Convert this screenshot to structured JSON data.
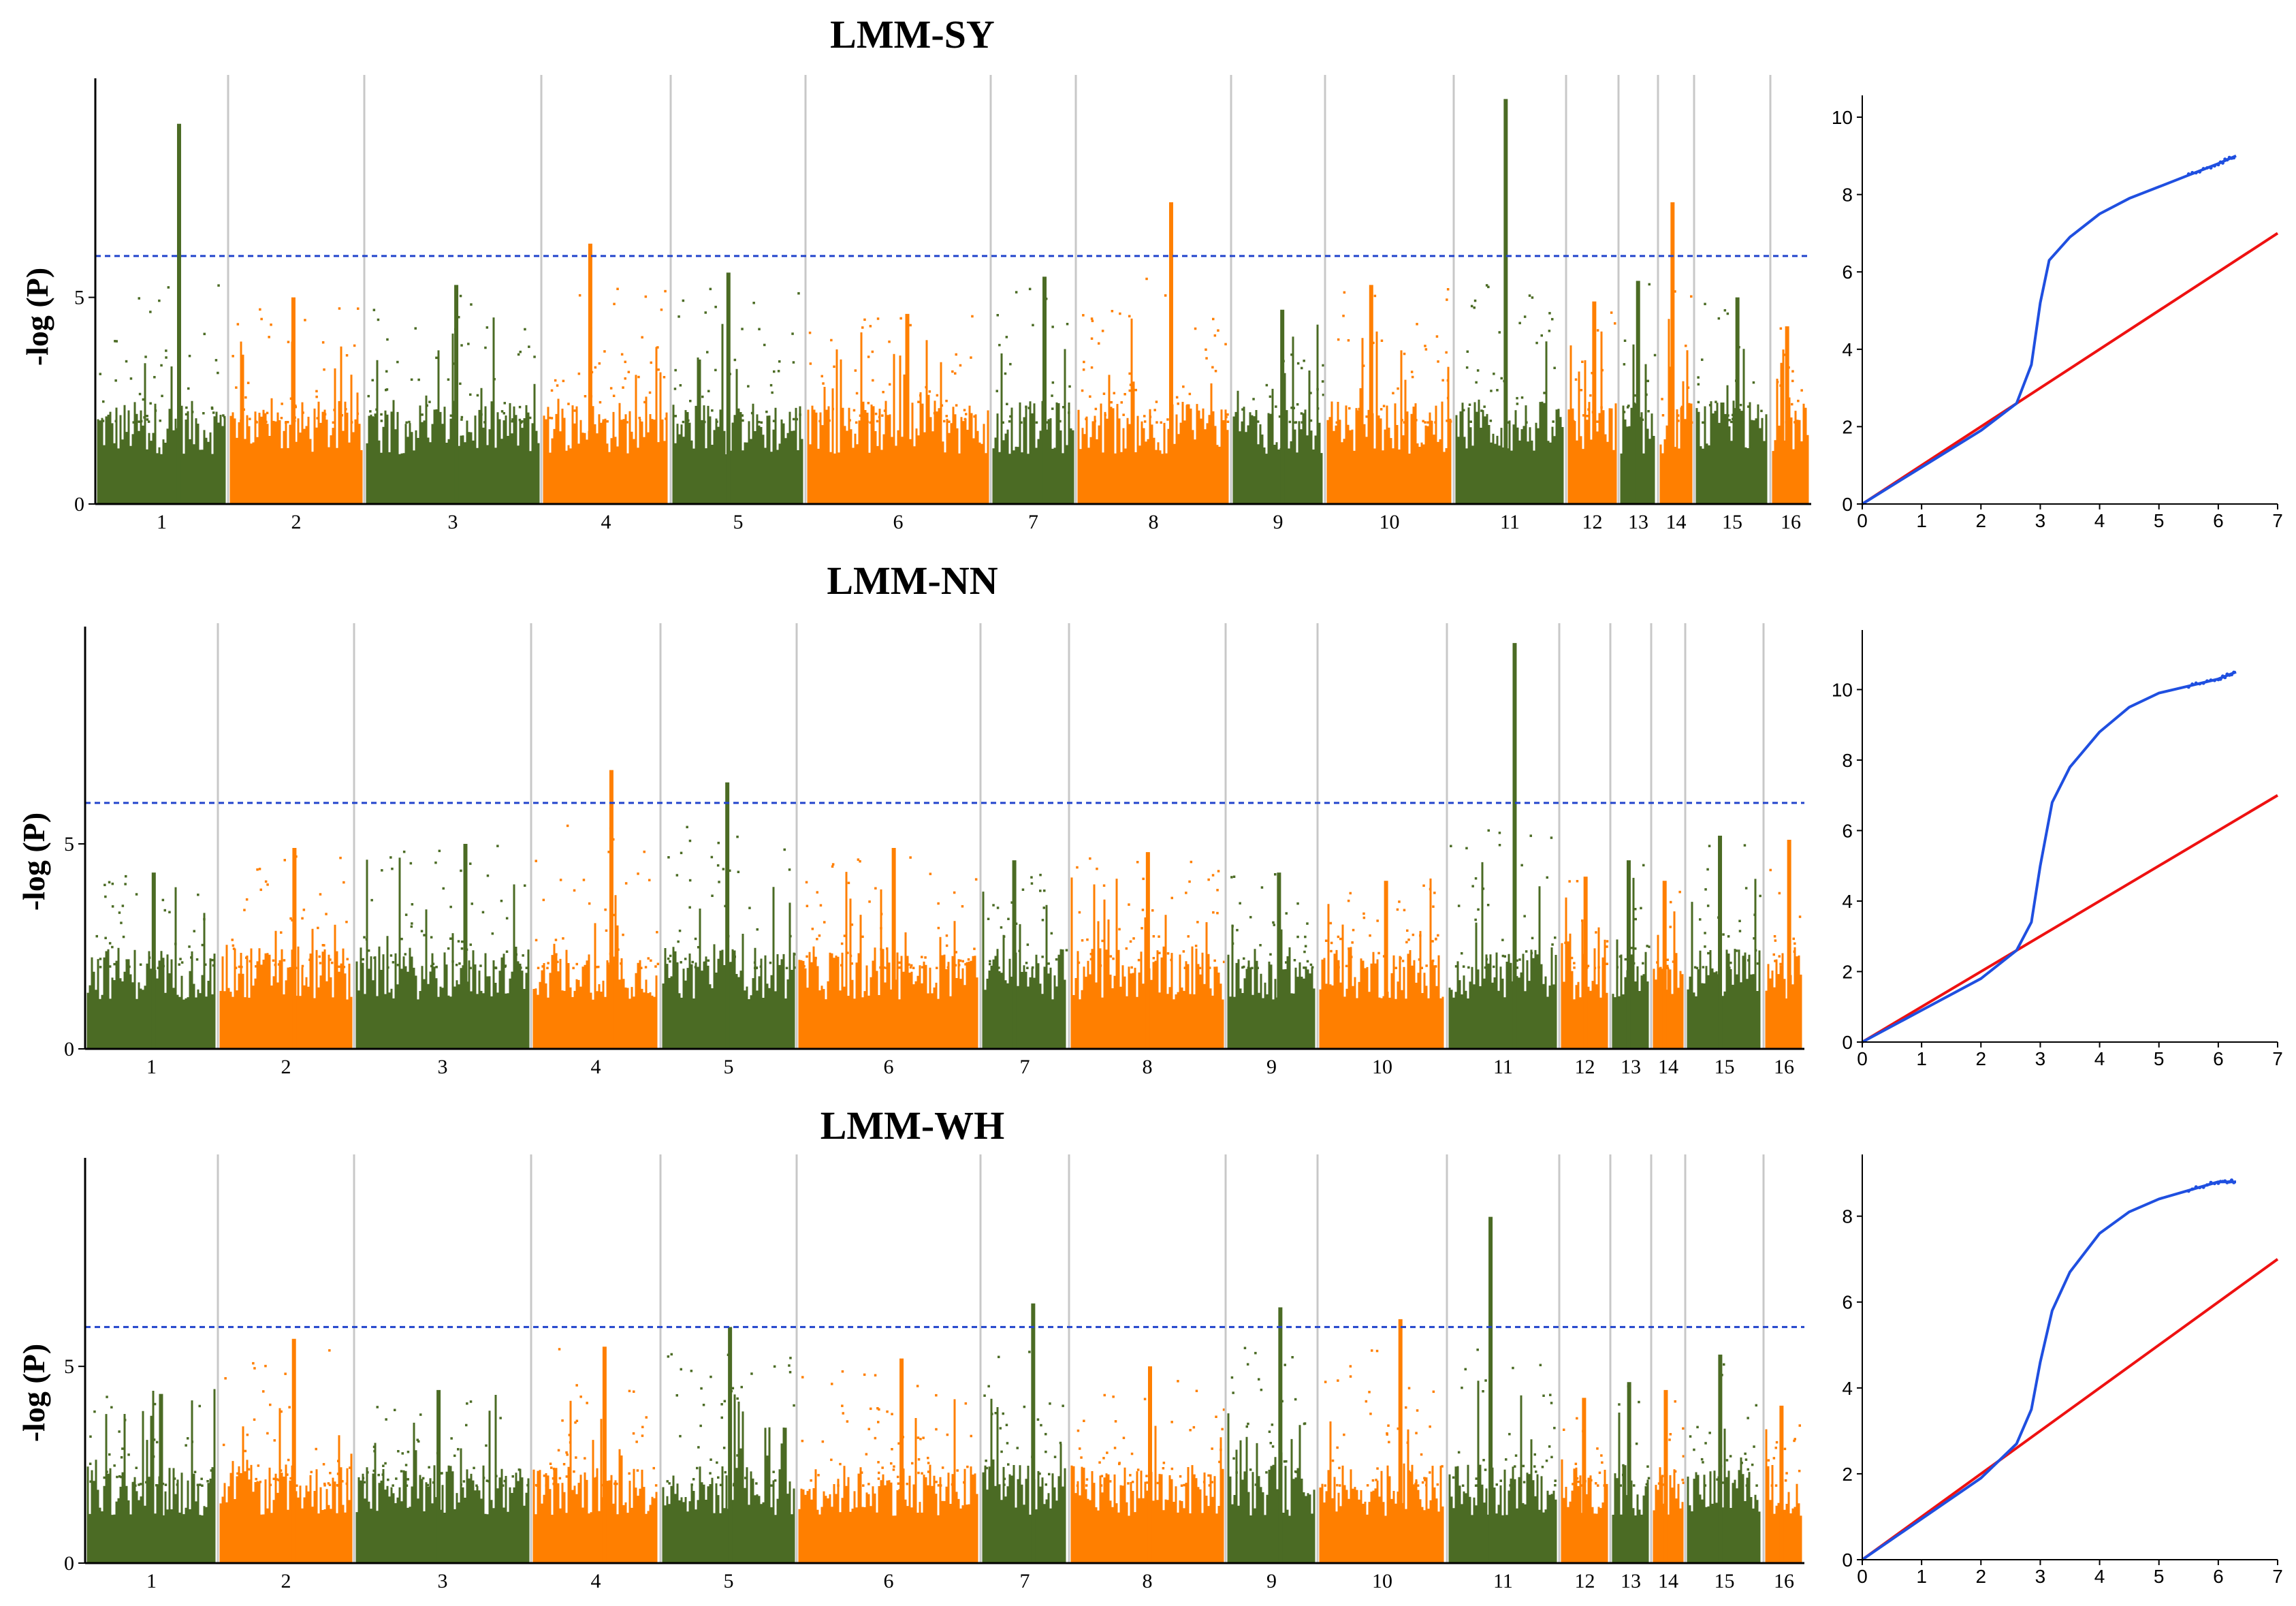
{
  "colors": {
    "chrom_odd": "#4b6b24",
    "chrom_even": "#ff7f00",
    "threshold": "#2244cc",
    "qq_observed": "#1f4fe0",
    "qq_expected": "#ee1111",
    "chrom_divider": "#c8c8c8"
  },
  "chart_data": [
    {
      "type": "scatter",
      "subtype": "manhattan",
      "title": "LMM-SY",
      "ylabel": "-log (P)",
      "xlabel": "",
      "yticks": [
        "0",
        "5"
      ],
      "ylim": [
        0,
        10.3
      ],
      "threshold": 6.0,
      "chromosomes": [
        "1",
        "2",
        "3",
        "4",
        "5",
        "6",
        "7",
        "8",
        "9",
        "10",
        "11",
        "12",
        "13",
        "14",
        "15",
        "16"
      ],
      "chromosome_peaks": [
        9.2,
        5.0,
        5.3,
        6.3,
        5.6,
        4.6,
        5.5,
        7.3,
        4.7,
        5.3,
        9.8,
        4.9,
        5.4,
        7.3,
        5.0,
        4.3
      ],
      "notable_peaks": [
        {
          "chromosome": "1",
          "value": 9.2
        },
        {
          "chromosome": "4",
          "value": 6.3
        },
        {
          "chromosome": "8",
          "value": 7.3
        },
        {
          "chromosome": "11",
          "value": 9.8
        },
        {
          "chromosome": "14",
          "value": 7.3
        }
      ]
    },
    {
      "type": "line",
      "subtype": "qq",
      "xticks": [
        "0",
        "1",
        "2",
        "3",
        "4",
        "5",
        "6",
        "7"
      ],
      "yticks": [
        "0",
        "2",
        "4",
        "6",
        "8",
        "10"
      ],
      "xlim": [
        0,
        7
      ],
      "ylim": [
        0,
        10.3
      ],
      "expected_line": [
        [
          0,
          0
        ],
        [
          7,
          7
        ]
      ],
      "observed": [
        [
          0,
          0
        ],
        [
          1,
          0.95
        ],
        [
          2,
          1.9
        ],
        [
          2.6,
          2.6
        ],
        [
          2.85,
          3.6
        ],
        [
          3.0,
          5.2
        ],
        [
          3.15,
          6.3
        ],
        [
          3.5,
          6.9
        ],
        [
          4,
          7.5
        ],
        [
          4.5,
          7.9
        ],
        [
          5,
          8.2
        ],
        [
          5.5,
          8.5
        ],
        [
          6,
          8.8
        ],
        [
          6.3,
          9.0
        ]
      ]
    },
    {
      "type": "scatter",
      "subtype": "manhattan",
      "title": "LMM-NN",
      "ylabel": "-log (P)",
      "xlabel": "",
      "yticks": [
        "0",
        "5"
      ],
      "ylim": [
        0,
        10.3
      ],
      "threshold": 6.0,
      "chromosomes": [
        "1",
        "2",
        "3",
        "4",
        "5",
        "6",
        "7",
        "8",
        "9",
        "10",
        "11",
        "12",
        "13",
        "14",
        "15",
        "16"
      ],
      "chromosome_peaks": [
        4.3,
        4.9,
        5.0,
        6.8,
        6.5,
        4.9,
        4.6,
        4.8,
        4.3,
        4.1,
        9.9,
        4.2,
        4.6,
        4.1,
        5.2,
        5.1
      ],
      "notable_peaks": [
        {
          "chromosome": "4",
          "value": 6.8
        },
        {
          "chromosome": "5",
          "value": 6.5
        },
        {
          "chromosome": "11",
          "value": 9.9
        }
      ]
    },
    {
      "type": "line",
      "subtype": "qq",
      "xticks": [
        "0",
        "1",
        "2",
        "3",
        "4",
        "5",
        "6",
        "7"
      ],
      "yticks": [
        "0",
        "2",
        "4",
        "6",
        "8",
        "10"
      ],
      "xlim": [
        0,
        7
      ],
      "ylim": [
        0,
        11.4
      ],
      "expected_line": [
        [
          0,
          0
        ],
        [
          7,
          7
        ]
      ],
      "observed": [
        [
          0,
          0
        ],
        [
          1,
          0.9
        ],
        [
          2,
          1.8
        ],
        [
          2.6,
          2.6
        ],
        [
          2.85,
          3.4
        ],
        [
          3.0,
          5.0
        ],
        [
          3.2,
          6.8
        ],
        [
          3.5,
          7.8
        ],
        [
          4,
          8.8
        ],
        [
          4.5,
          9.5
        ],
        [
          5,
          9.9
        ],
        [
          5.5,
          10.1
        ],
        [
          6,
          10.3
        ],
        [
          6.3,
          10.5
        ]
      ]
    },
    {
      "type": "scatter",
      "subtype": "manhattan",
      "title": "LMM-WH",
      "ylabel": "-log (P)",
      "xlabel": "",
      "yticks": [
        "0",
        "5"
      ],
      "ylim": [
        0,
        10.3
      ],
      "threshold": 6.0,
      "chromosomes": [
        "1",
        "2",
        "3",
        "4",
        "5",
        "6",
        "7",
        "8",
        "9",
        "10",
        "11",
        "12",
        "13",
        "14",
        "15",
        "16"
      ],
      "chromosome_peaks": [
        4.3,
        5.7,
        4.4,
        5.5,
        6.0,
        5.2,
        6.6,
        5.0,
        6.5,
        6.2,
        8.8,
        4.2,
        4.6,
        4.4,
        5.3,
        4.0
      ],
      "notable_peaks": [
        {
          "chromosome": "7",
          "value": 6.6
        },
        {
          "chromosome": "9",
          "value": 6.5
        },
        {
          "chromosome": "11",
          "value": 8.8
        }
      ]
    },
    {
      "type": "line",
      "subtype": "qq",
      "xticks": [
        "0",
        "1",
        "2",
        "3",
        "4",
        "5",
        "6",
        "7"
      ],
      "yticks": [
        "0",
        "2",
        "4",
        "6",
        "8"
      ],
      "xlim": [
        0,
        7
      ],
      "ylim": [
        0,
        9.2
      ],
      "expected_line": [
        [
          0,
          0
        ],
        [
          7,
          7
        ]
      ],
      "observed": [
        [
          0,
          0
        ],
        [
          1,
          0.95
        ],
        [
          2,
          1.9
        ],
        [
          2.6,
          2.7
        ],
        [
          2.85,
          3.5
        ],
        [
          3.0,
          4.6
        ],
        [
          3.2,
          5.8
        ],
        [
          3.5,
          6.7
        ],
        [
          4,
          7.6
        ],
        [
          4.5,
          8.1
        ],
        [
          5,
          8.4
        ],
        [
          5.5,
          8.6
        ],
        [
          6,
          8.8
        ],
        [
          6.3,
          8.8
        ]
      ]
    }
  ]
}
